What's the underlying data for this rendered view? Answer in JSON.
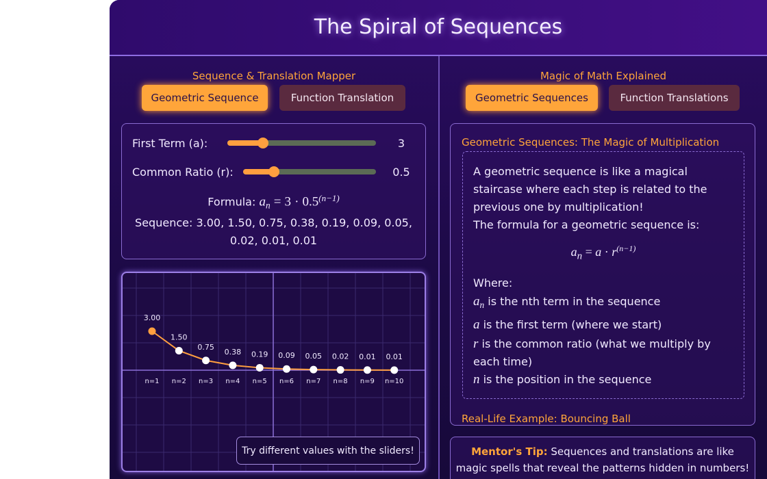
{
  "header": {
    "title": "The Spiral of Sequences"
  },
  "mapper": {
    "title": "Sequence & Translation Mapper",
    "tabs": [
      "Geometric Sequence",
      "Function Translation"
    ],
    "controls": [
      {
        "label": "First Term (a):",
        "value": 3
      },
      {
        "label": "Common Ratio (r):",
        "value": 0.5
      }
    ],
    "formula": {
      "label": "Formula:",
      "symbol": "a",
      "subscript": "n",
      "equals": "=",
      "times": "·",
      "exponent": "(n−1)"
    },
    "sequence": {
      "label": "Sequence:",
      "separator": ", "
    },
    "hint": "Try different values with the sliders!"
  },
  "chart_data": {
    "type": "line",
    "categories": [
      "n=1",
      "n=2",
      "n=3",
      "n=4",
      "n=5",
      "n=6",
      "n=7",
      "n=8",
      "n=9",
      "n=10"
    ],
    "values": [
      3,
      1.5,
      0.75,
      0.375,
      0.1875,
      0.09375,
      0.046875,
      0.0234375,
      0.01171875,
      0.005859375
    ],
    "value_labels": [
      "3.00",
      "1.50",
      "0.75",
      "0.38",
      "0.19",
      "0.09",
      "0.05",
      "0.02",
      "0.01",
      "0.01"
    ],
    "line_color": "#ff9f3f",
    "first_point_color": "#ff9f3f",
    "point_color": "#ffffff"
  },
  "explainer": {
    "title": "Magic of Math Explained",
    "tabs": [
      "Geometric Sequences",
      "Function Translations"
    ],
    "heading": "Geometric Sequences: The Magic of Multiplication",
    "intro": [
      "A geometric sequence is like a magical staircase where each step is related to the previous one by multiplication!",
      "The formula for a geometric sequence is:"
    ],
    "formula": {
      "symbol": "a",
      "subscript": "n",
      "equals": "=",
      "first": "a",
      "times": "·",
      "ratio": "r",
      "exponent": "(n−1)"
    },
    "where": "Where:",
    "definitions": [
      {
        "symbol": "a",
        "subscript": "n",
        "text": "is the nth term in the sequence"
      },
      {
        "symbol": "a",
        "text": "is the first term (where we start)"
      },
      {
        "symbol": "r",
        "text": "is the common ratio (what we multiply by each time)"
      },
      {
        "symbol": "n",
        "text": "is the position in the sequence"
      }
    ],
    "next_heading": "Real-Life Example: Bouncing Ball"
  },
  "tip": {
    "label": "Mentor's Tip:",
    "text": "Sequences and translations are like magic spells that reveal the patterns hidden in numbers!"
  }
}
